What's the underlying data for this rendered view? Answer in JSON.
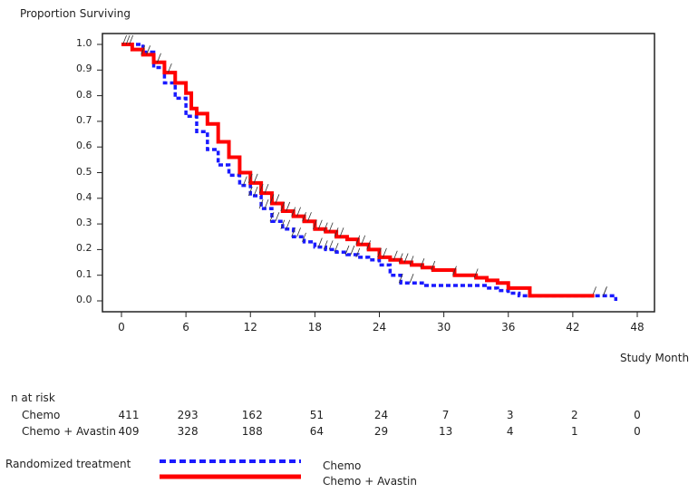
{
  "chart_data": {
    "type": "line",
    "subtype": "kaplan-meier",
    "ylabel": "Proportion Surviving",
    "xlabel": "Study Month",
    "xlim": [
      0,
      48
    ],
    "ylim": [
      0,
      1
    ],
    "xticks": [
      "0",
      "6",
      "12",
      "18",
      "24",
      "30",
      "36",
      "42",
      "48"
    ],
    "yticks": [
      "0.0",
      "0.1",
      "0.2",
      "0.3",
      "0.4",
      "0.5",
      "0.6",
      "0.7",
      "0.8",
      "0.9",
      "1.0"
    ],
    "grid": false,
    "series": [
      {
        "name": "Chemo",
        "color": "#1a1aff",
        "style": "dashed",
        "x": [
          0,
          2,
          3,
          4,
          5,
          6,
          7,
          8,
          9,
          10,
          11,
          12,
          13,
          14,
          15,
          16,
          17,
          18,
          19,
          20,
          21,
          22,
          23,
          24,
          25,
          26,
          28,
          34,
          35,
          36,
          37,
          45.5,
          46
        ],
        "y": [
          1.0,
          0.97,
          0.91,
          0.85,
          0.79,
          0.72,
          0.66,
          0.59,
          0.53,
          0.49,
          0.45,
          0.41,
          0.36,
          0.31,
          0.28,
          0.25,
          0.23,
          0.21,
          0.2,
          0.19,
          0.18,
          0.17,
          0.16,
          0.14,
          0.1,
          0.07,
          0.06,
          0.05,
          0.04,
          0.03,
          0.02,
          0.02,
          0.0
        ],
        "censored": [
          11.5,
          12,
          12.5,
          13,
          13.5,
          14,
          14.5,
          15,
          15.5,
          16,
          16.5,
          17,
          18.5,
          19,
          19.5,
          20,
          21,
          21.5,
          22,
          26,
          27,
          44,
          45
        ]
      },
      {
        "name": "Chemo + Avastin",
        "color": "#ff0000",
        "style": "solid",
        "x": [
          0,
          1,
          2,
          3,
          4,
          5,
          6,
          6.5,
          7,
          8,
          9,
          10,
          11,
          12,
          13,
          14,
          15,
          16,
          17,
          18,
          19,
          20,
          21,
          22,
          23,
          24,
          25,
          26,
          27,
          28,
          29,
          30,
          31,
          33,
          34,
          35,
          36,
          38,
          44
        ],
        "y": [
          1.0,
          0.98,
          0.96,
          0.93,
          0.89,
          0.85,
          0.81,
          0.75,
          0.73,
          0.69,
          0.62,
          0.56,
          0.5,
          0.46,
          0.42,
          0.38,
          0.35,
          0.33,
          0.31,
          0.28,
          0.27,
          0.25,
          0.24,
          0.22,
          0.2,
          0.17,
          0.16,
          0.15,
          0.14,
          0.13,
          0.12,
          0.12,
          0.1,
          0.09,
          0.08,
          0.07,
          0.05,
          0.02,
          0.02
        ],
        "censored": [
          0.3,
          0.6,
          0.9,
          2,
          2.5,
          3.5,
          4.5,
          12,
          12.5,
          13,
          13.5,
          14,
          14.5,
          15,
          15.5,
          16,
          16.5,
          17,
          17.5,
          18,
          18.5,
          19,
          19.5,
          20,
          20.5,
          22,
          22.5,
          23,
          24,
          24.5,
          25.5,
          26,
          26.5,
          27,
          28,
          29,
          31,
          33,
          45
        ]
      }
    ],
    "legend": {
      "title": "Randomized treatment",
      "placement": "bottom-left"
    },
    "risk_table": {
      "title": "n at risk",
      "rows": [
        {
          "label": "Chemo",
          "values": [
            "411",
            "293",
            "162",
            "51",
            "24",
            "7",
            "3",
            "2",
            "0"
          ]
        },
        {
          "label": "Chemo + Avastin",
          "values": [
            "409",
            "328",
            "188",
            "64",
            "29",
            "13",
            "4",
            "1",
            "0"
          ]
        }
      ]
    }
  }
}
